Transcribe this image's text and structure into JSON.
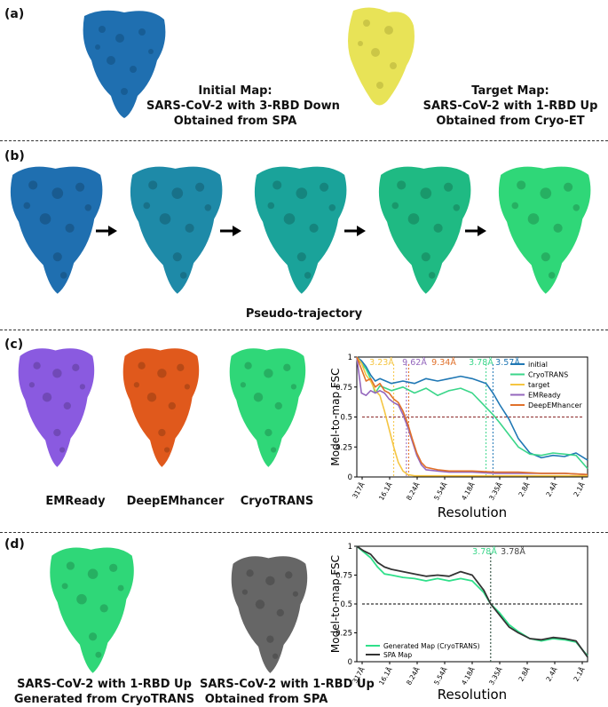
{
  "colors": {
    "initial": "#1f6fb0",
    "target": "#e8e357",
    "cryotrans": "#2fd778",
    "emready": "#8a5ae0",
    "deepemhancer": "#e0591c",
    "spa_gray": "#666666",
    "fsc_initial": "#1f77b4",
    "fsc_cryotrans": "#3bd68a",
    "fsc_target": "#f5c542",
    "fsc_emready": "#9467bd",
    "fsc_deep": "#e0702a"
  },
  "panel_a": {
    "label": "(a)",
    "initial_caption": [
      "Initial Map:",
      "SARS-CoV-2 with 3-RBD Down",
      "Obtained from SPA"
    ],
    "target_caption": [
      "Target Map:",
      "SARS-CoV-2 with 1-RBD Up",
      "Obtained from Cryo-ET"
    ]
  },
  "panel_b": {
    "label": "(b)",
    "caption": "Pseudo-trajectory",
    "frame_colors": [
      "#1f6fb0",
      "#1e8aa8",
      "#1aa39a",
      "#1fba83",
      "#2fd778"
    ]
  },
  "panel_c": {
    "label": "(c)",
    "map_labels": [
      "EMReady",
      "DeepEMhancer",
      "CryoTRANS"
    ]
  },
  "panel_d": {
    "label": "(d)",
    "left_caption": [
      "SARS-CoV-2 with 1-RBD Up",
      "Generated from CryoTRANS"
    ],
    "right_caption": [
      "SARS-CoV-2 with 1-RBD Up",
      "Obtained from SPA"
    ]
  },
  "chart_data": [
    {
      "type": "line",
      "ylabel": "Model-to-map FSC",
      "xlabel": "Resolution",
      "x_tick_labels": [
        "317Å",
        "16.1Å",
        "8.24Å",
        "5.54Å",
        "4.18Å",
        "3.35Å",
        "2.8Å",
        "2.4Å",
        "2.1Å"
      ],
      "y_ticks": [
        "0",
        "0.25",
        "0.5",
        "0.75",
        "1"
      ],
      "ylim": [
        0,
        1
      ],
      "threshold": 0.5,
      "legend_position": "top-right",
      "annotations": [
        {
          "text": "3.23Å",
          "color": "#f5c542",
          "x": 0.16
        },
        {
          "text": "9.62Å",
          "color": "#9467bd",
          "x": 0.215
        },
        {
          "text": "9.34Å",
          "color": "#e0702a",
          "x": 0.225
        },
        {
          "text": "3.78Å",
          "color": "#3bd68a",
          "x": 0.56
        },
        {
          "text": "3.57Å",
          "color": "#1f77b4",
          "x": 0.59
        }
      ],
      "series": [
        {
          "name": "initial",
          "color": "#1f77b4",
          "x": [
            0,
            0.02,
            0.04,
            0.06,
            0.08,
            0.1,
            0.15,
            0.2,
            0.25,
            0.3,
            0.35,
            0.4,
            0.45,
            0.5,
            0.53,
            0.56,
            0.59,
            0.62,
            0.66,
            0.7,
            0.75,
            0.8,
            0.85,
            0.9,
            0.95,
            1.0
          ],
          "y": [
            1.0,
            0.97,
            0.92,
            0.85,
            0.8,
            0.82,
            0.78,
            0.8,
            0.78,
            0.82,
            0.8,
            0.82,
            0.84,
            0.82,
            0.8,
            0.78,
            0.7,
            0.6,
            0.48,
            0.32,
            0.2,
            0.16,
            0.18,
            0.17,
            0.2,
            0.14
          ]
        },
        {
          "name": "CryoTRANS",
          "color": "#3bd68a",
          "x": [
            0,
            0.02,
            0.04,
            0.06,
            0.08,
            0.1,
            0.15,
            0.2,
            0.25,
            0.3,
            0.35,
            0.4,
            0.45,
            0.5,
            0.53,
            0.56,
            0.59,
            0.62,
            0.66,
            0.7,
            0.75,
            0.8,
            0.85,
            0.9,
            0.95,
            1.0
          ],
          "y": [
            0.98,
            0.95,
            0.9,
            0.82,
            0.7,
            0.76,
            0.72,
            0.75,
            0.7,
            0.74,
            0.68,
            0.72,
            0.74,
            0.7,
            0.64,
            0.58,
            0.52,
            0.45,
            0.35,
            0.25,
            0.19,
            0.18,
            0.2,
            0.19,
            0.18,
            0.07
          ]
        },
        {
          "name": "target",
          "color": "#f5c542",
          "x": [
            0,
            0.02,
            0.04,
            0.06,
            0.08,
            0.1,
            0.12,
            0.14,
            0.16,
            0.18,
            0.2,
            0.22,
            0.25,
            0.3,
            0.4,
            0.5,
            0.6,
            0.7,
            0.8,
            0.9,
            1.0
          ],
          "y": [
            1.0,
            0.95,
            0.85,
            0.8,
            0.72,
            0.68,
            0.55,
            0.4,
            0.25,
            0.12,
            0.05,
            0.02,
            0.01,
            0.01,
            0.01,
            0.01,
            0.01,
            0.01,
            0.01,
            0.01,
            0.01
          ]
        },
        {
          "name": "EMReady",
          "color": "#9467bd",
          "x": [
            0,
            0.02,
            0.04,
            0.06,
            0.08,
            0.1,
            0.12,
            0.14,
            0.16,
            0.18,
            0.2,
            0.22,
            0.24,
            0.26,
            0.28,
            0.3,
            0.35,
            0.4,
            0.5,
            0.6,
            0.7,
            0.8,
            0.9,
            1.0
          ],
          "y": [
            1.0,
            0.7,
            0.68,
            0.72,
            0.7,
            0.72,
            0.7,
            0.65,
            0.62,
            0.6,
            0.52,
            0.42,
            0.3,
            0.18,
            0.1,
            0.06,
            0.05,
            0.04,
            0.04,
            0.03,
            0.03,
            0.03,
            0.03,
            0.02
          ]
        },
        {
          "name": "DeepEMhancer",
          "color": "#e0702a",
          "x": [
            0,
            0.02,
            0.04,
            0.06,
            0.08,
            0.1,
            0.12,
            0.14,
            0.16,
            0.18,
            0.2,
            0.22,
            0.24,
            0.26,
            0.28,
            0.3,
            0.35,
            0.4,
            0.5,
            0.6,
            0.7,
            0.8,
            0.9,
            1.0
          ],
          "y": [
            1.0,
            0.9,
            0.8,
            0.82,
            0.75,
            0.78,
            0.72,
            0.7,
            0.65,
            0.62,
            0.55,
            0.45,
            0.32,
            0.2,
            0.12,
            0.08,
            0.06,
            0.05,
            0.05,
            0.04,
            0.04,
            0.03,
            0.03,
            0.02
          ]
        }
      ]
    },
    {
      "type": "line",
      "ylabel": "Model-to-map FSC",
      "xlabel": "Resolution",
      "x_tick_labels": [
        "317Å",
        "16.1Å",
        "8.24Å",
        "5.54Å",
        "4.18Å",
        "3.35Å",
        "2.8Å",
        "2.4Å",
        "2.1Å"
      ],
      "y_ticks": [
        "0",
        "0.25",
        "0.5",
        "0.75",
        "1"
      ],
      "ylim": [
        0,
        1
      ],
      "threshold": 0.5,
      "legend_position": "bottom-left",
      "annotations": [
        {
          "text": "3.78Å",
          "color": "#3bd68a",
          "x": 0.58
        },
        {
          "text": "3.78Å",
          "color": "#444444",
          "x": 0.58
        }
      ],
      "series": [
        {
          "name": "Generated Map (CryoTRANS)",
          "color": "#2fe08a",
          "x": [
            0,
            0.03,
            0.06,
            0.09,
            0.12,
            0.15,
            0.2,
            0.25,
            0.3,
            0.35,
            0.4,
            0.45,
            0.5,
            0.55,
            0.58,
            0.62,
            0.66,
            0.7,
            0.75,
            0.8,
            0.85,
            0.9,
            0.95,
            1.0
          ],
          "y": [
            1.0,
            0.95,
            0.9,
            0.82,
            0.76,
            0.75,
            0.73,
            0.72,
            0.7,
            0.72,
            0.7,
            0.72,
            0.7,
            0.6,
            0.5,
            0.42,
            0.32,
            0.26,
            0.2,
            0.18,
            0.2,
            0.19,
            0.17,
            0.05
          ]
        },
        {
          "name": "SPA Map",
          "color": "#333333",
          "x": [
            0,
            0.03,
            0.06,
            0.09,
            0.12,
            0.15,
            0.2,
            0.25,
            0.3,
            0.35,
            0.4,
            0.45,
            0.5,
            0.55,
            0.58,
            0.62,
            0.66,
            0.7,
            0.75,
            0.8,
            0.85,
            0.9,
            0.95,
            1.0
          ],
          "y": [
            1.0,
            0.96,
            0.93,
            0.86,
            0.82,
            0.8,
            0.78,
            0.76,
            0.74,
            0.75,
            0.74,
            0.78,
            0.75,
            0.62,
            0.5,
            0.4,
            0.3,
            0.25,
            0.2,
            0.19,
            0.21,
            0.2,
            0.18,
            0.04
          ]
        }
      ]
    }
  ]
}
